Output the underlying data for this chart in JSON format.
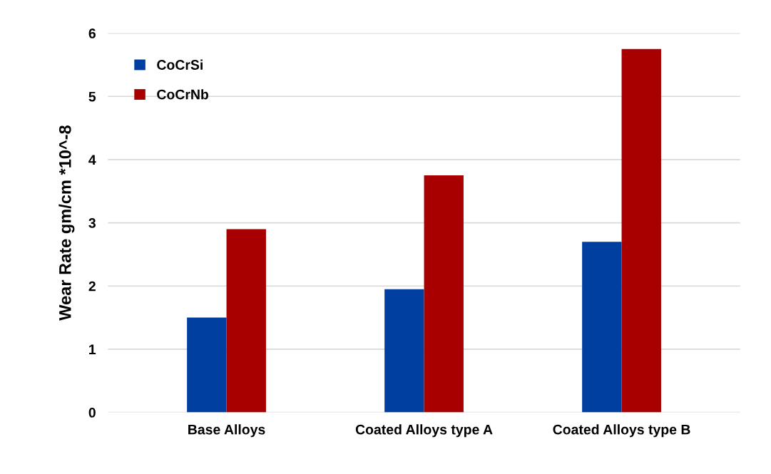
{
  "chart_data": {
    "type": "bar",
    "ylabel": "Wear Rate gm/cm *10^-8",
    "categories": [
      "Base Alloys",
      "Coated Alloys type A",
      "Coated Alloys type B"
    ],
    "series": [
      {
        "name": "CoCrSi",
        "color": "#003fa0",
        "values": [
          1.5,
          1.95,
          2.7
        ]
      },
      {
        "name": "CoCrNb",
        "color": "#a80000",
        "values": [
          2.9,
          3.75,
          5.75
        ]
      }
    ],
    "ylim": [
      0,
      6
    ],
    "yticks": [
      0,
      1,
      2,
      3,
      4,
      5,
      6
    ],
    "grid": "y",
    "legend": "top left"
  }
}
